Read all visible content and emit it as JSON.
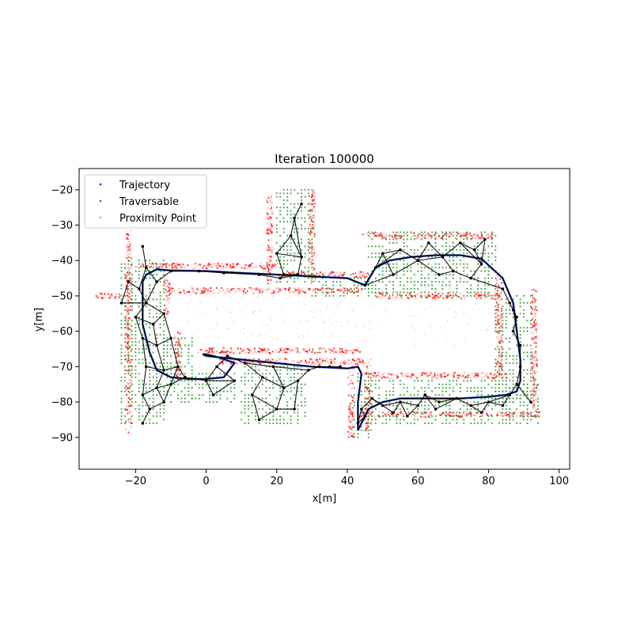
{
  "chart_data": {
    "type": "scatter",
    "title": "Iteration 100000",
    "xlabel": "x[m]",
    "ylabel": "y[m]",
    "xlim": [
      -36,
      103
    ],
    "ylim": [
      -99,
      -14
    ],
    "xticks": [
      -20,
      0,
      20,
      40,
      60,
      80,
      100
    ],
    "yticks": [
      -20,
      -30,
      -40,
      -50,
      -60,
      -70,
      -80,
      -90
    ],
    "xtick_labels": [
      "−20",
      "0",
      "20",
      "40",
      "60",
      "80",
      "100"
    ],
    "ytick_labels": [
      "−20",
      "−30",
      "−40",
      "−50",
      "−60",
      "−70",
      "−80",
      "−90"
    ],
    "legend_position": "upper-left",
    "legend": [
      "Trajectory",
      "Traversable",
      "Proximity Point"
    ],
    "colors": {
      "trajectory": "#1f3fd8",
      "traversable": "#2e9a2e",
      "proximity": "#ff2020",
      "graph": "#000000"
    },
    "series": [
      {
        "name": "Trajectory",
        "x": [
          -18,
          -17,
          -14,
          -10,
          0,
          10,
          20,
          30,
          40,
          45,
          48,
          52,
          58,
          65,
          72,
          78,
          84,
          87,
          88,
          89,
          89,
          88,
          85,
          80,
          72,
          62,
          55,
          50,
          46,
          44,
          43,
          43,
          44,
          43,
          40,
          30,
          20,
          10,
          0,
          -1,
          0,
          4,
          8,
          5,
          0,
          -5,
          -10,
          -14,
          -16,
          -18,
          -18,
          -18
        ],
        "y": [
          -46,
          -44,
          -42.5,
          -42.8,
          -43,
          -43.5,
          -44,
          -44.5,
          -45,
          -47,
          -42,
          -40,
          -39,
          -38.5,
          -38.5,
          -39.5,
          -45,
          -52,
          -60,
          -68,
          -74,
          -77,
          -78,
          -78.5,
          -79,
          -79,
          -79,
          -80,
          -82,
          -86,
          -88,
          -80,
          -72,
          -70,
          -70.5,
          -70,
          -69,
          -68,
          -67,
          -66.5,
          -66.5,
          -67.5,
          -69,
          -73,
          -73.5,
          -73.5,
          -73,
          -71,
          -66,
          -58,
          -52,
          -46
        ]
      },
      {
        "name": "Traversable",
        "regions": [
          {
            "x": [
              -24,
              -12
            ],
            "y": [
              -86,
              -40
            ]
          },
          {
            "x": [
              -12,
              -4
            ],
            "y": [
              -80,
              -62
            ]
          },
          {
            "x": [
              -4,
              8
            ],
            "y": [
              -80,
              -72
            ]
          },
          {
            "x": [
              10,
              28
            ],
            "y": [
              -86,
              -70
            ]
          },
          {
            "x": [
              20,
              30
            ],
            "y": [
              -46,
              -20
            ]
          },
          {
            "x": [
              30,
              46
            ],
            "y": [
              -50,
              -44
            ]
          },
          {
            "x": [
              46,
              82
            ],
            "y": [
              -50,
              -32
            ]
          },
          {
            "x": [
              82,
              92
            ],
            "y": [
              -80,
              -50
            ]
          },
          {
            "x": [
              44,
              94
            ],
            "y": [
              -86,
              -74
            ]
          },
          {
            "x": [
              42,
              46
            ],
            "y": [
              -90,
              -72
            ]
          }
        ]
      },
      {
        "name": "Proximity Point",
        "walls": [
          {
            "x": [
              -20,
              20
            ],
            "y": [
              -41.5,
              -41.5
            ]
          },
          {
            "x": [
              -10,
              44
            ],
            "y": [
              -48.5,
              -48.5
            ]
          },
          {
            "x": [
              20,
              46
            ],
            "y": [
              -44,
              -44
            ]
          },
          {
            "x": [
              45,
              82
            ],
            "y": [
              -33,
              -33
            ]
          },
          {
            "x": [
              48,
              84
            ],
            "y": [
              -50,
              -50
            ]
          },
          {
            "x": [
              -2,
              44
            ],
            "y": [
              -65.5,
              -65.5
            ]
          },
          {
            "x": [
              4,
              46
            ],
            "y": [
              -68.5,
              -68.5
            ]
          },
          {
            "x": [
              46,
              86
            ],
            "y": [
              -72.5,
              -72.5
            ]
          },
          {
            "x": [
              44,
              95
            ],
            "y": [
              -83.5,
              -83.5
            ]
          },
          {
            "x": [
              83,
              83
            ],
            "y": [
              -72,
              -44
            ]
          },
          {
            "x": [
              93,
              93
            ],
            "y": [
              -82,
              -48
            ]
          },
          {
            "x": [
              -22,
              -22
            ],
            "y": [
              -88,
              -32
            ]
          },
          {
            "x": [
              -8,
              -8
            ],
            "y": [
              -74,
              -60
            ]
          },
          {
            "x": [
              -11,
              -11
            ],
            "y": [
              -55,
              -45
            ]
          },
          {
            "x": [
              41,
              41
            ],
            "y": [
              -90,
              -70
            ]
          },
          {
            "x": [
              46,
              46
            ],
            "y": [
              -88,
              -70
            ]
          },
          {
            "x": [
              18,
              18
            ],
            "y": [
              -46,
              -22
            ]
          },
          {
            "x": [
              30,
              30
            ],
            "y": [
              -46,
              -20
            ]
          },
          {
            "x": [
              -31,
              -24
            ],
            "y": [
              -50,
              -50
            ]
          }
        ]
      }
    ],
    "graph_nodes": [
      [
        -18,
        -36
      ],
      [
        -17,
        -42
      ],
      [
        -19,
        -48
      ],
      [
        -17,
        -52
      ],
      [
        -22,
        -46
      ],
      [
        -24,
        -52
      ],
      [
        -20,
        -56
      ],
      [
        -15,
        -58
      ],
      [
        -12,
        -55
      ],
      [
        -18,
        -62
      ],
      [
        -14,
        -64
      ],
      [
        -10,
        -62
      ],
      [
        -17,
        -70
      ],
      [
        -12,
        -71
      ],
      [
        -8,
        -70
      ],
      [
        -18,
        -78
      ],
      [
        -14,
        -76
      ],
      [
        -10,
        -75
      ],
      [
        -16,
        -82
      ],
      [
        -18,
        -86
      ],
      [
        -12,
        -80
      ],
      [
        -6,
        -73
      ],
      [
        0,
        -74
      ],
      [
        3,
        -70
      ],
      [
        6,
        -67
      ],
      [
        8,
        -74
      ],
      [
        2,
        -78
      ],
      [
        11,
        -69
      ],
      [
        13,
        -78
      ],
      [
        16,
        -73
      ],
      [
        15,
        -85
      ],
      [
        20,
        -82
      ],
      [
        22,
        -76
      ],
      [
        19,
        -70
      ],
      [
        26,
        -74
      ],
      [
        25,
        -82
      ],
      [
        29,
        -71
      ],
      [
        32,
        -70
      ],
      [
        35,
        -70
      ],
      [
        38,
        -70
      ],
      [
        22,
        -44
      ],
      [
        20,
        -38
      ],
      [
        24,
        -33
      ],
      [
        27,
        -39
      ],
      [
        26,
        -44
      ],
      [
        25,
        -28
      ],
      [
        27,
        -24
      ],
      [
        21,
        -45
      ],
      [
        45,
        -47
      ],
      [
        48,
        -42
      ],
      [
        50,
        -38
      ],
      [
        53,
        -44
      ],
      [
        55,
        -37
      ],
      [
        60,
        -40
      ],
      [
        63,
        -35
      ],
      [
        67,
        -39
      ],
      [
        70,
        -43
      ],
      [
        72,
        -35
      ],
      [
        76,
        -37
      ],
      [
        79,
        -34
      ],
      [
        78,
        -41
      ],
      [
        75,
        -45
      ],
      [
        66,
        -44
      ],
      [
        84,
        -48
      ],
      [
        86,
        -52
      ],
      [
        87,
        -54
      ],
      [
        88,
        -56
      ],
      [
        87,
        -60
      ],
      [
        89,
        -64
      ],
      [
        89,
        -70
      ],
      [
        88,
        -75
      ],
      [
        92,
        -80
      ],
      [
        86,
        -78
      ],
      [
        84,
        -81
      ],
      [
        80,
        -80
      ],
      [
        78,
        -83
      ],
      [
        75,
        -81
      ],
      [
        71,
        -79
      ],
      [
        66,
        -80
      ],
      [
        62,
        -78
      ],
      [
        60,
        -81
      ],
      [
        57,
        -84
      ],
      [
        55,
        -80
      ],
      [
        50,
        -81
      ],
      [
        47,
        -79
      ],
      [
        44,
        -82
      ],
      [
        43,
        -86
      ],
      [
        45,
        -84
      ],
      [
        53,
        -83
      ],
      [
        65,
        -82
      ],
      [
        -14,
        -46
      ],
      [
        -10,
        -43
      ],
      [
        -2,
        -43
      ],
      [
        5,
        -43.5
      ],
      [
        15,
        -44
      ]
    ],
    "graph_edges": [
      [
        0,
        1
      ],
      [
        1,
        2
      ],
      [
        2,
        3
      ],
      [
        2,
        4
      ],
      [
        4,
        5
      ],
      [
        5,
        3
      ],
      [
        3,
        6
      ],
      [
        6,
        7
      ],
      [
        7,
        8
      ],
      [
        8,
        3
      ],
      [
        6,
        9
      ],
      [
        9,
        10
      ],
      [
        10,
        11
      ],
      [
        11,
        8
      ],
      [
        7,
        10
      ],
      [
        9,
        12
      ],
      [
        12,
        13
      ],
      [
        13,
        14
      ],
      [
        14,
        11
      ],
      [
        10,
        13
      ],
      [
        12,
        15
      ],
      [
        15,
        16
      ],
      [
        16,
        17
      ],
      [
        17,
        14
      ],
      [
        13,
        16
      ],
      [
        15,
        18
      ],
      [
        18,
        19
      ],
      [
        18,
        20
      ],
      [
        20,
        16
      ],
      [
        20,
        17
      ],
      [
        17,
        21
      ],
      [
        21,
        14
      ],
      [
        21,
        22
      ],
      [
        22,
        23
      ],
      [
        23,
        24
      ],
      [
        22,
        25
      ],
      [
        25,
        26
      ],
      [
        26,
        22
      ],
      [
        23,
        25
      ],
      [
        24,
        27
      ],
      [
        27,
        29
      ],
      [
        29,
        28
      ],
      [
        28,
        30
      ],
      [
        30,
        31
      ],
      [
        31,
        28
      ],
      [
        29,
        32
      ],
      [
        32,
        33
      ],
      [
        33,
        27
      ],
      [
        32,
        34
      ],
      [
        34,
        35
      ],
      [
        35,
        31
      ],
      [
        31,
        32
      ],
      [
        33,
        36
      ],
      [
        36,
        34
      ],
      [
        36,
        37
      ],
      [
        37,
        38
      ],
      [
        38,
        39
      ],
      [
        40,
        41
      ],
      [
        41,
        42
      ],
      [
        42,
        43
      ],
      [
        43,
        44
      ],
      [
        44,
        40
      ],
      [
        41,
        43
      ],
      [
        42,
        45
      ],
      [
        45,
        46
      ],
      [
        43,
        45
      ],
      [
        40,
        47
      ],
      [
        47,
        44
      ],
      [
        48,
        49
      ],
      [
        49,
        50
      ],
      [
        50,
        51
      ],
      [
        51,
        48
      ],
      [
        49,
        52
      ],
      [
        52,
        53
      ],
      [
        53,
        51
      ],
      [
        50,
        52
      ],
      [
        53,
        54
      ],
      [
        54,
        55
      ],
      [
        55,
        53
      ],
      [
        55,
        56
      ],
      [
        56,
        62
      ],
      [
        62,
        53
      ],
      [
        55,
        57
      ],
      [
        57,
        58
      ],
      [
        58,
        59
      ],
      [
        59,
        60
      ],
      [
        60,
        58
      ],
      [
        60,
        61
      ],
      [
        61,
        56
      ],
      [
        57,
        60
      ],
      [
        61,
        63
      ],
      [
        63,
        64
      ],
      [
        64,
        65
      ],
      [
        65,
        66
      ],
      [
        66,
        67
      ],
      [
        67,
        68
      ],
      [
        68,
        69
      ],
      [
        69,
        70
      ],
      [
        70,
        71
      ],
      [
        70,
        72
      ],
      [
        72,
        73
      ],
      [
        73,
        74
      ],
      [
        74,
        72
      ],
      [
        74,
        75
      ],
      [
        75,
        76
      ],
      [
        76,
        74
      ],
      [
        76,
        77
      ],
      [
        77,
        78
      ],
      [
        78,
        79
      ],
      [
        79,
        80
      ],
      [
        80,
        81
      ],
      [
        81,
        82
      ],
      [
        82,
        80
      ],
      [
        82,
        83
      ],
      [
        83,
        84
      ],
      [
        84,
        85
      ],
      [
        85,
        86
      ],
      [
        86,
        87
      ],
      [
        87,
        85
      ],
      [
        84,
        88
      ],
      [
        88,
        82
      ],
      [
        77,
        89
      ],
      [
        89,
        79
      ],
      [
        1,
        90
      ],
      [
        90,
        91
      ],
      [
        91,
        92
      ],
      [
        92,
        93
      ],
      [
        93,
        94
      ],
      [
        94,
        47
      ],
      [
        3,
        90
      ]
    ]
  }
}
